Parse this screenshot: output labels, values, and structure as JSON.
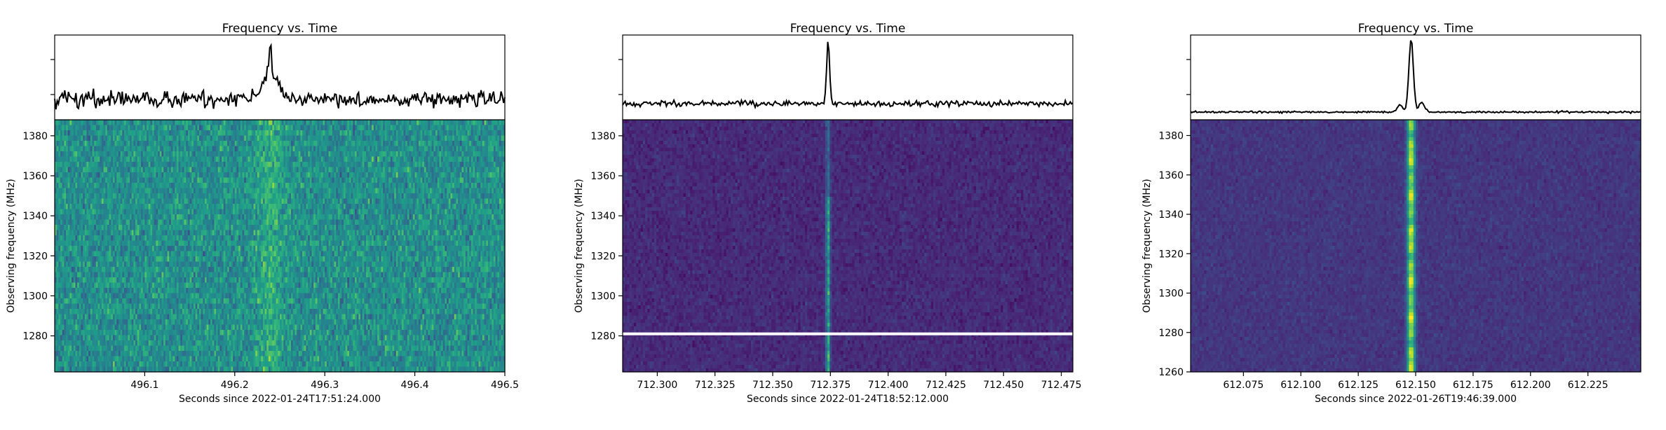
{
  "chart_data": [
    {
      "type": "heatmap",
      "title": "Frequency vs. Time",
      "xlabel": "Seconds since 2022-01-24T17:51:24.000",
      "ylabel": "Observing frequency (MHz)",
      "xlim": [
        496.0,
        496.5
      ],
      "ylim": [
        1262,
        1388
      ],
      "xticks": [
        496.1,
        496.2,
        496.3,
        496.4,
        496.5
      ],
      "xtick_labels": [
        "496.1",
        "496.2",
        "496.3",
        "496.4",
        "496.5"
      ],
      "yticks": [
        1280,
        1300,
        1320,
        1340,
        1360,
        1380
      ],
      "ytick_labels": [
        "1280",
        "1300",
        "1320",
        "1340",
        "1360",
        "1380"
      ],
      "burst_time": 496.24,
      "colormap": "viridis",
      "masked_channel_mhz": null,
      "profile": "noisy, weak peak near 496.24"
    },
    {
      "type": "heatmap",
      "title": "Frequency vs. Time",
      "xlabel": "Seconds since 2022-01-24T18:52:12.000",
      "ylabel": "Observing frequency (MHz)",
      "xlim": [
        712.285,
        712.48
      ],
      "ylim": [
        1262,
        1388
      ],
      "xticks": [
        712.3,
        712.325,
        712.35,
        712.375,
        712.4,
        712.425,
        712.45,
        712.475
      ],
      "xtick_labels": [
        "712.300",
        "712.325",
        "712.350",
        "712.375",
        "712.400",
        "712.425",
        "712.450",
        "712.475"
      ],
      "yticks": [
        1280,
        1300,
        1320,
        1340,
        1360,
        1380
      ],
      "ytick_labels": [
        "1280",
        "1300",
        "1320",
        "1340",
        "1360",
        "1380"
      ],
      "burst_time": 712.374,
      "colormap": "viridis",
      "masked_channel_mhz": 1281,
      "profile": "narrow spike near 712.374"
    },
    {
      "type": "heatmap",
      "title": "Frequency vs. Time",
      "xlabel": "Seconds since 2022-01-26T19:46:39.000",
      "ylabel": "Observing frequency (MHz)",
      "xlim": [
        612.052,
        612.248
      ],
      "ylim": [
        1260,
        1388
      ],
      "xticks": [
        612.075,
        612.1,
        612.125,
        612.15,
        612.175,
        612.2,
        612.225
      ],
      "xtick_labels": [
        "612.075",
        "612.100",
        "612.125",
        "612.150",
        "612.175",
        "612.200",
        "612.225"
      ],
      "yticks": [
        1260,
        1280,
        1300,
        1320,
        1340,
        1360,
        1380
      ],
      "ytick_labels": [
        "1260",
        "1280",
        "1300",
        "1320",
        "1340",
        "1360",
        "1380"
      ],
      "burst_time": 612.148,
      "colormap": "viridis",
      "masked_channel_mhz": null,
      "profile": "strong spike near 612.148 with small shoulders"
    }
  ]
}
